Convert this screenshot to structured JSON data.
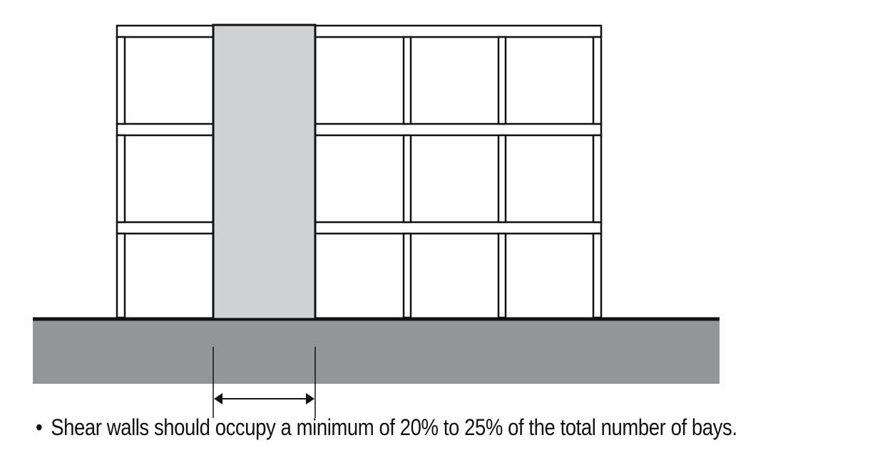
{
  "colors": {
    "outline": "#111111",
    "wall_fill": "#d1d2d4",
    "ground_fill": "#939598",
    "background": "#ffffff"
  },
  "caption": {
    "bullet": "•",
    "text": "Shear walls should occupy a minimum of 20% to 25% of the total number of bays."
  },
  "icons": [
    "double-arrow-dimension"
  ]
}
